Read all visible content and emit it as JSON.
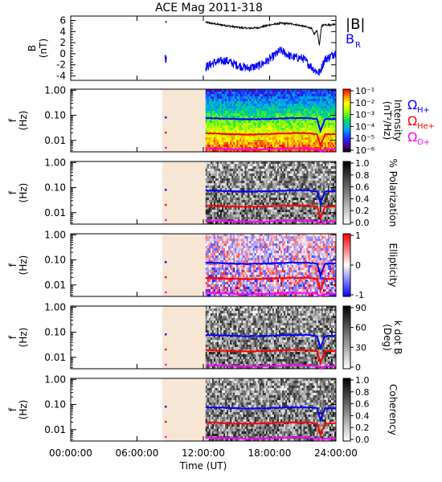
{
  "chart_data": {
    "type": "heatmap",
    "title": "ACE Mag 2011-318",
    "xlabel": "Time (UT)",
    "xticks": [
      "00:00:00",
      "06:00:00",
      "12:00:00",
      "18:00:00",
      "24:00:00"
    ],
    "xlim_hours": [
      0,
      24
    ],
    "shaded_interval_hours": [
      8.3,
      12.2
    ],
    "shade_color": "#f7e6d3",
    "data_start_hours": 12.2,
    "top_panel": {
      "ylabel": "B (nT)",
      "ylim": [
        -4.8,
        6.8
      ],
      "yticks": [
        "6",
        "4",
        "2",
        "0",
        "-2",
        "-4"
      ],
      "yvalues": [
        6,
        4,
        2,
        0,
        -2,
        -4
      ],
      "legend": [
        {
          "text": "|B|",
          "color": "#000000"
        },
        {
          "text": "B",
          "sub": "R",
          "color": "#0000ff"
        }
      ],
      "series": [
        {
          "name": "|B|",
          "color": "#000000",
          "x": [
            8.6,
            8.65,
            12.2,
            13,
            14,
            15,
            16,
            17,
            18,
            19,
            20,
            21,
            21.8,
            22,
            22.3,
            22.5,
            22.7,
            23,
            23.5,
            24
          ],
          "y": [
            5.9,
            5.6,
            5.7,
            5.4,
            5.1,
            4.8,
            4.6,
            4.7,
            5.2,
            5.5,
            5.4,
            5.0,
            4.6,
            3.5,
            4.2,
            1.5,
            5.0,
            5.3,
            5.2,
            5.4
          ]
        },
        {
          "name": "BR",
          "color": "#0000ff",
          "x": [
            8.55,
            8.6,
            8.65,
            12.2,
            13,
            14,
            15,
            16,
            17,
            18,
            19,
            20,
            21,
            22,
            22.5,
            23,
            23.5,
            24
          ],
          "y": [
            -0.2,
            -1.6,
            -0.5,
            -2.4,
            -1.6,
            -1.2,
            -2.0,
            -2.6,
            -2.2,
            -1.0,
            0.6,
            -0.6,
            -0.8,
            -2.8,
            -3.5,
            -1.0,
            -0.5,
            0.3
          ]
        }
      ]
    },
    "panels": [
      {
        "ylabel": "f (Hz)",
        "colorbar_label": "Intensity (nT²/Hz)",
        "colorbar_ticks": [
          "10⁻¹",
          "10⁻²",
          "10⁻³",
          "10⁻⁴",
          "10⁻⁵",
          "10⁻⁶"
        ],
        "colormap": "rainbow"
      },
      {
        "ylabel": "f (Hz)",
        "colorbar_label": "% Polarization",
        "colorbar_ticks": [
          "1.0",
          "0.8",
          "0.6",
          "0.4",
          "0.2",
          "0.0"
        ],
        "colormap": "gray"
      },
      {
        "ylabel": "f (Hz)",
        "colorbar_label": "Ellipticity",
        "colorbar_ticks": [
          "1",
          "0",
          "-1"
        ],
        "colormap": "bwr"
      },
      {
        "ylabel": "f (Hz)",
        "colorbar_label": "k dot B (Deg)",
        "colorbar_ticks": [
          "90",
          "60",
          "30",
          "0"
        ],
        "colormap": "gray"
      },
      {
        "ylabel": "f (Hz)",
        "colorbar_label": "Coherency",
        "colorbar_ticks": [
          "1.0",
          "0.8",
          "0.6",
          "0.4",
          "0.2",
          "0.0"
        ],
        "colormap": "gray"
      }
    ],
    "freq_axis": {
      "scale": "log",
      "ylim": [
        0.0035,
        1.1
      ],
      "yticks": [
        "1.00",
        "0.10",
        "0.01"
      ],
      "yvalues": [
        1.0,
        0.1,
        0.01
      ]
    },
    "gyrofrequency_lines": [
      {
        "name": "ΩH+",
        "label": "Ω",
        "sub": "H+",
        "color": "#0000ff",
        "x": [
          8.6,
          12.2,
          14,
          16,
          18,
          20,
          21.5,
          22.3,
          22.6,
          23,
          24
        ],
        "y": [
          0.082,
          0.078,
          0.073,
          0.069,
          0.072,
          0.078,
          0.077,
          0.07,
          0.024,
          0.07,
          0.072
        ]
      },
      {
        "name": "ΩHe+",
        "label": "Ω",
        "sub": "He+",
        "color": "#ff0000",
        "x": [
          8.6,
          12.2,
          14,
          16,
          18,
          20,
          21.5,
          22.3,
          22.6,
          23,
          24
        ],
        "y": [
          0.0205,
          0.0195,
          0.018,
          0.0172,
          0.018,
          0.0195,
          0.0192,
          0.0175,
          0.006,
          0.0175,
          0.018
        ]
      },
      {
        "name": "ΩO+",
        "label": "Ω",
        "sub": "O+",
        "color": "#ff00ff",
        "x": [
          8.6,
          12.2,
          14,
          16,
          18,
          20,
          21.5,
          22.3,
          22.6,
          23,
          24
        ],
        "y": [
          0.0051,
          0.0049,
          0.0046,
          0.0043,
          0.0045,
          0.0049,
          0.0048,
          0.0044,
          0.0036,
          0.0044,
          0.0045
        ]
      }
    ]
  }
}
